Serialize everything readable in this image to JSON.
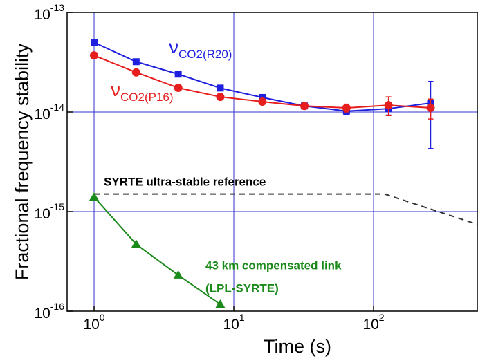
{
  "chart_data": {
    "type": "line",
    "xscale": "log",
    "yscale": "log",
    "x_label": "Time (s)",
    "y_label": "Fractional frequency stability",
    "xlim": [
      0.641,
      559
    ],
    "ylim": [
      1e-16,
      1e-13
    ],
    "xticks": [
      {
        "value": 1,
        "label": "10",
        "sup": "0"
      },
      {
        "value": 10,
        "label": "10",
        "sup": "1"
      },
      {
        "value": 100,
        "label": "10",
        "sup": "2"
      }
    ],
    "yticks": [
      {
        "value": 1e-13,
        "label": "10",
        "sup": "-13"
      },
      {
        "value": 1e-14,
        "label": "10",
        "sup": "-14"
      },
      {
        "value": 1e-15,
        "label": "10",
        "sup": "-15"
      },
      {
        "value": 1e-16,
        "label": "10",
        "sup": "-16"
      }
    ],
    "grid": true,
    "grid_color": "#3333cc",
    "series": [
      {
        "name": "ν",
        "subscript": "CO2(R20)",
        "color": "#1f1fe0",
        "marker": "square",
        "x": [
          1,
          2,
          4,
          8,
          16,
          32,
          64,
          128,
          256
        ],
        "values": [
          5e-14,
          3.2e-14,
          2.4e-14,
          1.74e-14,
          1.4e-14,
          1.15e-14,
          1.02e-14,
          1.08e-14,
          1.23e-14
        ],
        "errors": [
          0,
          0,
          0,
          0,
          0,
          5e-16,
          8e-16,
          1.5e-15,
          8e-15
        ]
      },
      {
        "name": "ν",
        "subscript": "CO2(P16)",
        "color": "#e61e1e",
        "marker": "circle",
        "x": [
          1,
          2,
          4,
          8,
          16,
          32,
          64,
          128,
          256
        ],
        "values": [
          3.7e-14,
          2.5e-14,
          1.75e-14,
          1.42e-14,
          1.27e-14,
          1.15e-14,
          1.1e-14,
          1.17e-14,
          1.1e-14
        ],
        "errors": [
          0,
          0,
          0,
          0,
          0,
          5e-16,
          1e-15,
          2.5e-15,
          2.5e-15
        ]
      },
      {
        "name": "SYRTE ultra-stable reference",
        "color": "#333333",
        "marker": "none",
        "dashed": true,
        "x": [
          1,
          120,
          560
        ],
        "values": [
          1.5e-15,
          1.5e-15,
          7.4e-16
        ]
      },
      {
        "name": "43 km compensated link",
        "subname": "(LPL-SYRTE)",
        "color": "#1a8a1a",
        "marker": "triangle",
        "x": [
          1,
          2,
          4,
          8
        ],
        "values": [
          1.4e-15,
          4.7e-16,
          2.3e-16,
          1.17e-16
        ]
      }
    ]
  }
}
